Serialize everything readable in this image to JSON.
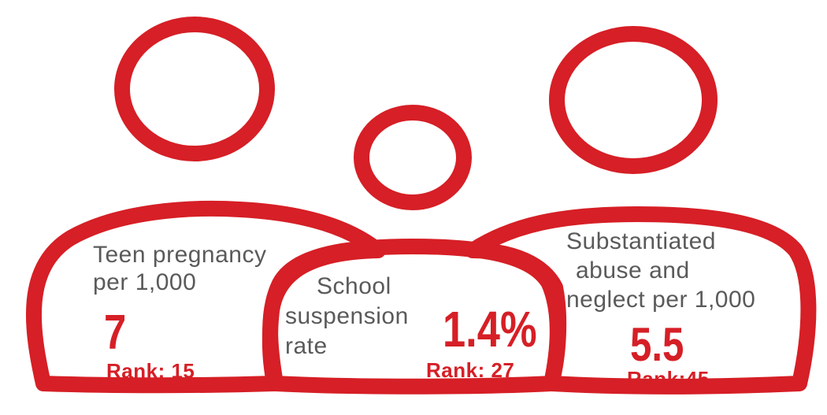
{
  "colors": {
    "accent": "#d61f26",
    "label_text": "#5a5a5a",
    "background": "#ffffff"
  },
  "stats": {
    "teen_pregnancy": {
      "label_line1": "Teen pregnancy",
      "label_line2": "per 1,000",
      "value": "7",
      "rank": "Rank: 15"
    },
    "school_suspension": {
      "label_line1": "School",
      "label_line2": "suspension",
      "label_line3": "rate",
      "value": "1.4%",
      "rank": "Rank: 27"
    },
    "abuse_neglect": {
      "label_line1": "Substantiated",
      "label_line2": "abuse and",
      "label_line3": "neglect per 1,000",
      "value": "5.5",
      "rank": "Rank:45"
    }
  },
  "icons": [
    "left-person-icon",
    "center-person-icon",
    "right-person-icon"
  ]
}
